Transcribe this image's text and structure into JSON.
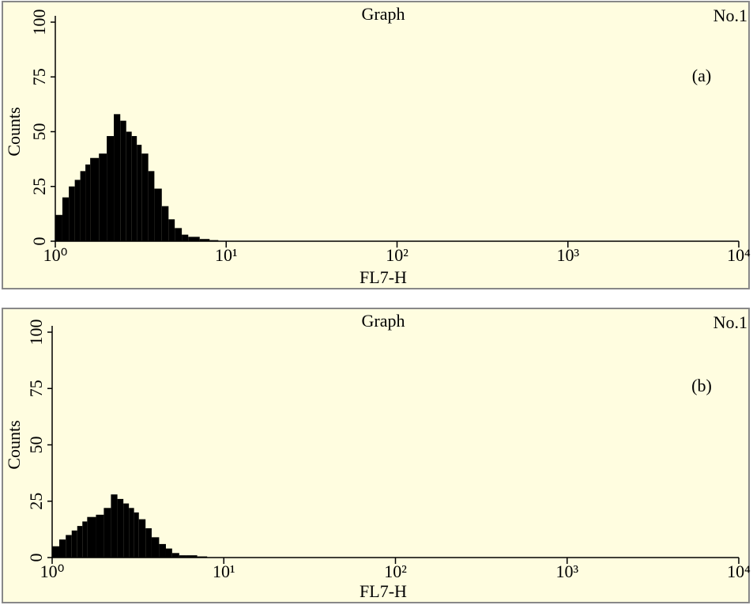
{
  "chart_data": [
    {
      "type": "histogram",
      "title": "Graph",
      "annotations": [
        "No.1",
        "(a)"
      ],
      "x_label": "FL7-H",
      "y_label": "Counts",
      "bins": [
        1,
        1.1,
        1.2,
        1.3,
        1.4,
        1.5,
        1.6,
        1.8,
        2,
        2.2,
        2.4,
        2.6,
        2.8,
        3,
        3.2,
        3.5,
        3.8,
        4.2,
        4.6,
        5,
        5.5,
        6,
        7,
        8,
        9,
        10
      ],
      "values": [
        12,
        20,
        25,
        28,
        32,
        35,
        38,
        40,
        48,
        58,
        55,
        50,
        48,
        44,
        40,
        32,
        24,
        16,
        10,
        6,
        3,
        2,
        1,
        0.5,
        0
      ],
      "color": "#000000",
      "background": "#fffde0",
      "log_x": true,
      "xlim": [
        1,
        10000
      ],
      "xticks": [
        {
          "value": 1,
          "label": "10⁰"
        },
        {
          "value": 10,
          "label": "10¹"
        },
        {
          "value": 100,
          "label": "10²"
        },
        {
          "value": 1000,
          "label": "10³"
        },
        {
          "value": 10000,
          "label": "10⁴"
        }
      ],
      "ylim": [
        0,
        100
      ],
      "yticks": [
        0,
        25,
        50,
        75,
        100
      ]
    },
    {
      "type": "histogram",
      "title": "Graph",
      "annotations": [
        "No.1",
        "(b)"
      ],
      "x_label": "FL7-H",
      "y_label": "Counts",
      "bins": [
        1,
        1.1,
        1.2,
        1.3,
        1.4,
        1.5,
        1.6,
        1.8,
        2,
        2.2,
        2.4,
        2.6,
        2.8,
        3,
        3.2,
        3.5,
        3.8,
        4.2,
        4.6,
        5,
        5.5,
        6,
        7,
        8,
        9,
        10
      ],
      "values": [
        5,
        8,
        10,
        12,
        14,
        16,
        18,
        19,
        22,
        28,
        26,
        24,
        22,
        20,
        17,
        13,
        9,
        6,
        4,
        2,
        1,
        1,
        0.5,
        0,
        0
      ],
      "color": "#000000",
      "background": "#fffde0",
      "log_x": true,
      "xlim": [
        1,
        10000
      ],
      "xticks": [
        {
          "value": 1,
          "label": "10⁰"
        },
        {
          "value": 10,
          "label": "10¹"
        },
        {
          "value": 100,
          "label": "10²"
        },
        {
          "value": 1000,
          "label": "10³"
        },
        {
          "value": 10000,
          "label": "10⁴"
        }
      ],
      "ylim": [
        0,
        100
      ],
      "yticks": [
        0,
        25,
        50,
        75,
        100
      ]
    }
  ]
}
